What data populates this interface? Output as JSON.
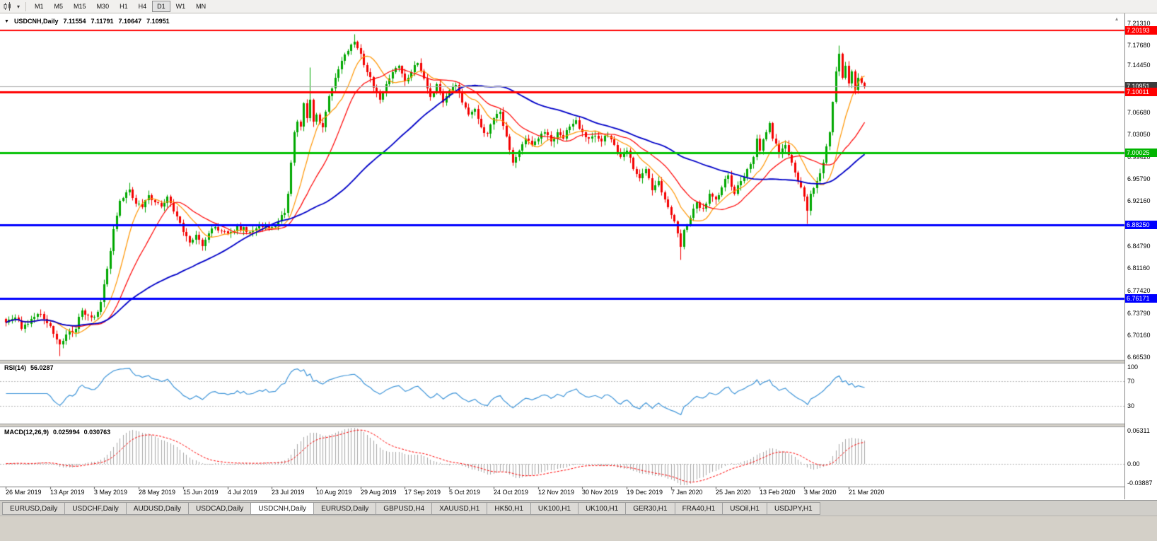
{
  "toolbar": {
    "caret_glyph": "▾",
    "timeframes": [
      {
        "label": "M1",
        "active": false
      },
      {
        "label": "M5",
        "active": false
      },
      {
        "label": "M15",
        "active": false
      },
      {
        "label": "M30",
        "active": false
      },
      {
        "label": "H1",
        "active": false
      },
      {
        "label": "H4",
        "active": false
      },
      {
        "label": "D1",
        "active": true
      },
      {
        "label": "W1",
        "active": false
      },
      {
        "label": "MN",
        "active": false
      }
    ]
  },
  "chart_header": {
    "collapse_icon": "▼",
    "scroll_marker_glyph": "▴",
    "symbol": "USDCNH,Daily",
    "open": "7.11554",
    "high": "7.11791",
    "low": "7.10647",
    "close": "7.10951"
  },
  "price_axis": {
    "labels": [
      {
        "text": "7.21310",
        "price": 7.2131
      },
      {
        "text": "7.17680",
        "price": 7.1768
      },
      {
        "text": "7.14450",
        "price": 7.1445
      },
      {
        "text": "7.06680",
        "price": 7.0668
      },
      {
        "text": "7.03050",
        "price": 7.0305
      },
      {
        "text": "6.99420",
        "price": 6.9942
      },
      {
        "text": "6.95790",
        "price": 6.9579
      },
      {
        "text": "6.92160",
        "price": 6.9216
      },
      {
        "text": "6.88530",
        "price": 6.8853
      },
      {
        "text": "6.84790",
        "price": 6.8479
      },
      {
        "text": "6.81160",
        "price": 6.8116
      },
      {
        "text": "6.77420",
        "price": 6.7742
      },
      {
        "text": "6.73790",
        "price": 6.7379
      },
      {
        "text": "6.70160",
        "price": 6.7016
      },
      {
        "text": "6.66530",
        "price": 6.6653
      }
    ],
    "badges": [
      {
        "text": "7.20193",
        "price": 7.20193,
        "bg": "#ff0000",
        "fg": "#ffffff"
      },
      {
        "text": "7.10951",
        "price": 7.10951,
        "bg": "#3c3c3c",
        "fg": "#ffffff"
      },
      {
        "text": "7.10011",
        "price": 7.10011,
        "bg": "#ff0000",
        "fg": "#ffffff"
      },
      {
        "text": "7.00025",
        "price": 7.00025,
        "bg": "#00b400",
        "fg": "#ffffff"
      },
      {
        "text": "6.88250",
        "price": 6.8825,
        "bg": "#0000ff",
        "fg": "#ffffff"
      },
      {
        "text": "6.76171",
        "price": 6.76171,
        "bg": "#0000ff",
        "fg": "#ffffff"
      }
    ]
  },
  "rsi_panel": {
    "title": "RSI(14)",
    "value": "56.0287",
    "axis_labels": [
      {
        "text": "100",
        "value": 100
      },
      {
        "text": "70",
        "value": 70
      },
      {
        "text": "30",
        "value": 30
      }
    ]
  },
  "macd_panel": {
    "title": "MACD(12,26,9)",
    "value_main": "0.025994",
    "value_signal": "0.030763",
    "axis_labels": [
      {
        "text": "0.06311",
        "value": 0.06311
      },
      {
        "text": "0.00",
        "value": 0
      },
      {
        "text": "-0.03887",
        "value": -0.03887
      }
    ]
  },
  "tabs": [
    {
      "label": "EURUSD,Daily",
      "active": false
    },
    {
      "label": "USDCHF,Daily",
      "active": false
    },
    {
      "label": "AUDUSD,Daily",
      "active": false
    },
    {
      "label": "USDCAD,Daily",
      "active": false
    },
    {
      "label": "USDCNH,Daily",
      "active": true
    },
    {
      "label": "EURUSD,Daily",
      "active": false
    },
    {
      "label": "GBPUSD,H4",
      "active": false
    },
    {
      "label": "XAUUSD,H1",
      "active": false
    },
    {
      "label": "HK50,H1",
      "active": false
    },
    {
      "label": "UK100,H1",
      "active": false
    },
    {
      "label": "UK100,H1",
      "active": false
    },
    {
      "label": "GER30,H1",
      "active": false
    },
    {
      "label": "FRA40,H1",
      "active": false
    },
    {
      "label": "USOil,H1",
      "active": false
    },
    {
      "label": "USDJPY,H1",
      "active": false
    }
  ],
  "chart_data": {
    "type": "candlestick",
    "title": "USDCNH,Daily",
    "symbol": "USDCNH",
    "timeframe": "Daily",
    "last_candle": {
      "open": 7.11554,
      "high": 7.11791,
      "low": 7.10647,
      "close": 7.10951
    },
    "ylim": [
      6.6596,
      7.2236
    ],
    "grid_step": 0.0363,
    "num_candles": 272,
    "days_per_label": 14,
    "x_labels": [
      "26 Mar 2019",
      "13 Apr 2019",
      "3 May 2019",
      "28 May 2019",
      "15 Jun 2019",
      "4 Jul 2019",
      "23 Jul 2019",
      "10 Aug 2019",
      "29 Aug 2019",
      "17 Sep 2019",
      "5 Oct 2019",
      "24 Oct 2019",
      "12 Nov 2019",
      "30 Nov 2019",
      "19 Dec 2019",
      "7 Jan 2020",
      "25 Jan 2020",
      "13 Feb 2020",
      "3 Mar 2020",
      "21 Mar 2020"
    ],
    "up_color": "#00a800",
    "down_color": "#f40000",
    "close_keypoints": [
      [
        0,
        6.722
      ],
      [
        3,
        6.73
      ],
      [
        5,
        6.712
      ],
      [
        8,
        6.728
      ],
      [
        11,
        6.736
      ],
      [
        14,
        6.716
      ],
      [
        17,
        6.686
      ],
      [
        19,
        6.702
      ],
      [
        22,
        6.712
      ],
      [
        24,
        6.742
      ],
      [
        26,
        6.734
      ],
      [
        28,
        6.731
      ],
      [
        30,
        6.756
      ],
      [
        32,
        6.81
      ],
      [
        34,
        6.876
      ],
      [
        36,
        6.922
      ],
      [
        39,
        6.941
      ],
      [
        41,
        6.917
      ],
      [
        43,
        6.912
      ],
      [
        45,
        6.931
      ],
      [
        47,
        6.92
      ],
      [
        49,
        6.913
      ],
      [
        51,
        6.929
      ],
      [
        53,
        6.905
      ],
      [
        56,
        6.871
      ],
      [
        58,
        6.853
      ],
      [
        60,
        6.866
      ],
      [
        62,
        6.848
      ],
      [
        64,
        6.869
      ],
      [
        66,
        6.879
      ],
      [
        68,
        6.872
      ],
      [
        70,
        6.868
      ],
      [
        73,
        6.88
      ],
      [
        76,
        6.871
      ],
      [
        79,
        6.877
      ],
      [
        82,
        6.884
      ],
      [
        84,
        6.879
      ],
      [
        86,
        6.888
      ],
      [
        88,
        6.902
      ],
      [
        89,
        6.934
      ],
      [
        90,
        6.984
      ],
      [
        91,
        7.034
      ],
      [
        92,
        7.052
      ],
      [
        93,
        7.044
      ],
      [
        94,
        7.082
      ],
      [
        95,
        7.058
      ],
      [
        96,
        7.088
      ],
      [
        97,
        7.052
      ],
      [
        98,
        7.063
      ],
      [
        100,
        7.043
      ],
      [
        102,
        7.094
      ],
      [
        104,
        7.124
      ],
      [
        106,
        7.152
      ],
      [
        108,
        7.168
      ],
      [
        110,
        7.183
      ],
      [
        112,
        7.163
      ],
      [
        114,
        7.133
      ],
      [
        116,
        7.108
      ],
      [
        118,
        7.088
      ],
      [
        120,
        7.113
      ],
      [
        122,
        7.133
      ],
      [
        124,
        7.143
      ],
      [
        126,
        7.118
      ],
      [
        128,
        7.133
      ],
      [
        130,
        7.148
      ],
      [
        132,
        7.123
      ],
      [
        134,
        7.093
      ],
      [
        136,
        7.113
      ],
      [
        138,
        7.083
      ],
      [
        140,
        7.103
      ],
      [
        142,
        7.112
      ],
      [
        144,
        7.083
      ],
      [
        146,
        7.063
      ],
      [
        148,
        7.073
      ],
      [
        150,
        7.043
      ],
      [
        152,
        7.032
      ],
      [
        154,
        7.058
      ],
      [
        156,
        7.068
      ],
      [
        158,
        7.028
      ],
      [
        160,
        6.984
      ],
      [
        162,
        7.004
      ],
      [
        164,
        7.024
      ],
      [
        166,
        7.014
      ],
      [
        168,
        7.024
      ],
      [
        170,
        7.034
      ],
      [
        172,
        7.019
      ],
      [
        174,
        7.034
      ],
      [
        176,
        7.024
      ],
      [
        178,
        7.044
      ],
      [
        180,
        7.054
      ],
      [
        182,
        7.034
      ],
      [
        184,
        7.024
      ],
      [
        186,
        7.029
      ],
      [
        188,
        7.019
      ],
      [
        190,
        7.029
      ],
      [
        192,
        7.014
      ],
      [
        194,
        6.994
      ],
      [
        196,
        7.004
      ],
      [
        198,
        6.974
      ],
      [
        200,
        6.959
      ],
      [
        202,
        6.974
      ],
      [
        204,
        6.939
      ],
      [
        206,
        6.954
      ],
      [
        208,
        6.924
      ],
      [
        210,
        6.899
      ],
      [
        212,
        6.869
      ],
      [
        213,
        6.846
      ],
      [
        214,
        6.874
      ],
      [
        216,
        6.894
      ],
      [
        218,
        6.919
      ],
      [
        220,
        6.909
      ],
      [
        222,
        6.934
      ],
      [
        224,
        6.924
      ],
      [
        226,
        6.944
      ],
      [
        228,
        6.964
      ],
      [
        230,
        6.934
      ],
      [
        232,
        6.954
      ],
      [
        234,
        6.974
      ],
      [
        236,
        6.994
      ],
      [
        237,
        7.024
      ],
      [
        238,
        7.004
      ],
      [
        240,
        7.034
      ],
      [
        241,
        7.049
      ],
      [
        242,
        7.024
      ],
      [
        244,
        6.999
      ],
      [
        246,
        7.014
      ],
      [
        248,
        6.984
      ],
      [
        250,
        6.954
      ],
      [
        252,
        6.929
      ],
      [
        253,
        6.906
      ],
      [
        254,
        6.934
      ],
      [
        256,
        6.954
      ],
      [
        258,
        6.984
      ],
      [
        260,
        7.034
      ],
      [
        261,
        7.084
      ],
      [
        262,
        7.134
      ],
      [
        263,
        7.163
      ],
      [
        264,
        7.124
      ],
      [
        265,
        7.144
      ],
      [
        266,
        7.114
      ],
      [
        267,
        7.134
      ],
      [
        268,
        7.104
      ],
      [
        269,
        7.124
      ],
      [
        270,
        7.1155
      ],
      [
        271,
        7.10951
      ]
    ],
    "wick_overrides": [
      {
        "i": 17,
        "l": 6.668
      },
      {
        "i": 39,
        "h": 6.952
      },
      {
        "i": 96,
        "h": 7.141
      },
      {
        "i": 110,
        "h": 7.196
      },
      {
        "i": 213,
        "l": 6.825
      },
      {
        "i": 253,
        "l": 6.885
      },
      {
        "i": 263,
        "h": 7.177
      },
      {
        "i": 271,
        "h": 7.11791,
        "l": 7.10647
      }
    ],
    "hlines": [
      {
        "price": 7.20193,
        "color": "#ff0000",
        "width": 2
      },
      {
        "price": 7.10011,
        "color": "#ff0000",
        "width": 3
      },
      {
        "price": 7.00025,
        "color": "#00c000",
        "width": 3
      },
      {
        "price": 6.8825,
        "color": "#0000ff",
        "width": 3
      },
      {
        "price": 6.76171,
        "color": "#0000ff",
        "width": 3
      }
    ],
    "bid_line": {
      "price": 7.10951,
      "color": "#adadad"
    },
    "ma_series": [
      {
        "name": "SMA(10)",
        "period": 10,
        "color": "#ff9500",
        "width": 1.2
      },
      {
        "name": "SMA(20)",
        "period": 20,
        "color": "#ff0000",
        "width": 1.2
      },
      {
        "name": "SMA(55)",
        "period": 55,
        "color": "#0000c8",
        "width": 1.8
      }
    ],
    "rsi": {
      "period": 14,
      "current": 56.0287,
      "scale": [
        0,
        100
      ],
      "levels": [
        70,
        30
      ],
      "color": "#3e95d9"
    },
    "macd": {
      "fast": 12,
      "slow": 26,
      "signal": 9,
      "current_macd": 0.025994,
      "current_signal": 0.030763,
      "scale_max": 0.06311,
      "scale_min": -0.03887,
      "histogram_color": "#a8a8a8",
      "signal_color": "#ff0000"
    }
  }
}
